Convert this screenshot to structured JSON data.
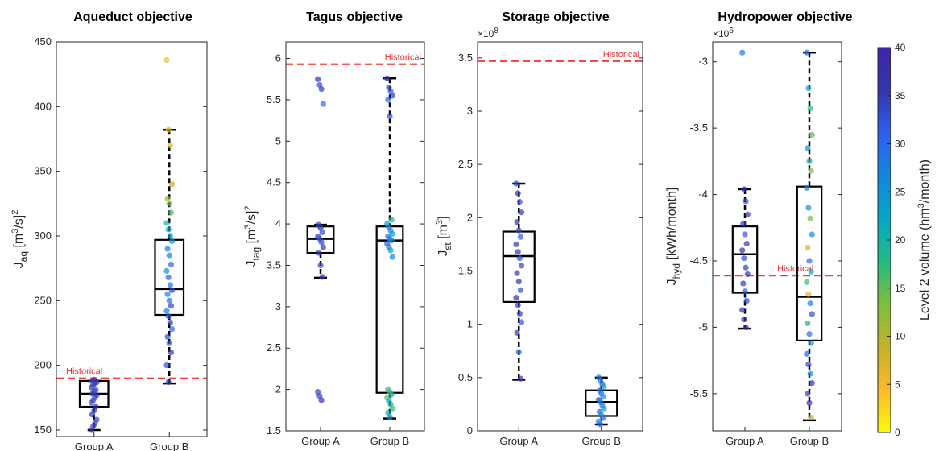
{
  "chart_data": [
    {
      "type": "box",
      "title": "Aqueduct objective",
      "ylabel": {
        "main": "J",
        "sub": "aq",
        "unit_pre": " [m",
        "unit_sup": "3",
        "unit_post": "/s]",
        "sup2": "2"
      },
      "exponent_label": "",
      "ylim": [
        145,
        450
      ],
      "yticks": [
        150,
        200,
        250,
        300,
        350,
        400,
        450
      ],
      "yticklabels": [
        "150",
        "200",
        "250",
        "300",
        "350",
        "400",
        "450"
      ],
      "categories": [
        "Group A",
        "Group B"
      ],
      "reference": {
        "label": "Historical",
        "value": 190
      },
      "boxes": [
        {
          "q1": 168,
          "median": 178,
          "q3": 188,
          "whisker_low": 150,
          "whisker_high": 188
        },
        {
          "q1": 239,
          "median": 259,
          "q3": 297,
          "whisker_low": 186,
          "whisker_high": 382
        }
      ],
      "points": [
        [
          {
            "y": 150,
            "c": 38
          },
          {
            "y": 153,
            "c": 33
          },
          {
            "y": 155,
            "c": 35
          },
          {
            "y": 158,
            "c": 34
          },
          {
            "y": 162,
            "c": 36
          },
          {
            "y": 165,
            "c": 34
          },
          {
            "y": 168,
            "c": 37
          },
          {
            "y": 171,
            "c": 33
          },
          {
            "y": 173,
            "c": 35
          },
          {
            "y": 175,
            "c": 32
          },
          {
            "y": 177,
            "c": 36
          },
          {
            "y": 178,
            "c": 34
          },
          {
            "y": 180,
            "c": 35
          },
          {
            "y": 181,
            "c": 33
          },
          {
            "y": 183,
            "c": 37
          },
          {
            "y": 185,
            "c": 34
          },
          {
            "y": 186,
            "c": 36
          },
          {
            "y": 187,
            "c": 35
          },
          {
            "y": 188,
            "c": 33
          },
          {
            "y": 189,
            "c": 38
          }
        ],
        [
          {
            "y": 436,
            "c": 5
          },
          {
            "y": 382,
            "c": 8
          },
          {
            "y": 370,
            "c": 6
          },
          {
            "y": 340,
            "c": 9
          },
          {
            "y": 329,
            "c": 12
          },
          {
            "y": 325,
            "c": 14
          },
          {
            "y": 318,
            "c": 16
          },
          {
            "y": 310,
            "c": 20
          },
          {
            "y": 305,
            "c": 22
          },
          {
            "y": 300,
            "c": 24
          },
          {
            "y": 296,
            "c": 26
          },
          {
            "y": 290,
            "c": 28
          },
          {
            "y": 285,
            "c": 27
          },
          {
            "y": 278,
            "c": 30
          },
          {
            "y": 273,
            "c": 25
          },
          {
            "y": 268,
            "c": 31
          },
          {
            "y": 262,
            "c": 29
          },
          {
            "y": 258,
            "c": 33
          },
          {
            "y": 255,
            "c": 27
          },
          {
            "y": 250,
            "c": 30
          },
          {
            "y": 246,
            "c": 34
          },
          {
            "y": 242,
            "c": 28
          },
          {
            "y": 238,
            "c": 32
          },
          {
            "y": 233,
            "c": 35
          },
          {
            "y": 228,
            "c": 30
          },
          {
            "y": 222,
            "c": 33
          },
          {
            "y": 217,
            "c": 31
          },
          {
            "y": 210,
            "c": 35
          },
          {
            "y": 200,
            "c": 33
          },
          {
            "y": 187,
            "c": 36
          }
        ]
      ]
    },
    {
      "type": "box",
      "title": "Tagus objective",
      "ylabel": {
        "main": "J",
        "sub": "tag",
        "unit_pre": " [m",
        "unit_sup": "3",
        "unit_post": "/s]",
        "sup2": "2"
      },
      "exponent_label": "",
      "ylim": [
        1.5,
        6.2
      ],
      "yticks": [
        1.5,
        2,
        2.5,
        3,
        3.5,
        4,
        4.5,
        5,
        5.5,
        6
      ],
      "yticklabels": [
        "1.5",
        "2",
        "2.5",
        "3",
        "3.5",
        "4",
        "4.5",
        "5",
        "5.5",
        "6"
      ],
      "categories": [
        "Group A",
        "Group B"
      ],
      "reference": {
        "label": "Historical",
        "value": 5.93
      },
      "boxes": [
        {
          "q1": 3.65,
          "median": 3.82,
          "q3": 3.97,
          "whisker_low": 3.35,
          "whisker_high": 3.99
        },
        {
          "q1": 1.96,
          "median": 3.8,
          "q3": 3.97,
          "whisker_low": 1.65,
          "whisker_high": 5.76
        }
      ],
      "points": [
        [
          {
            "y": 5.75,
            "c": 36
          },
          {
            "y": 5.68,
            "c": 33
          },
          {
            "y": 5.63,
            "c": 35
          },
          {
            "y": 5.45,
            "c": 30
          },
          {
            "y": 3.99,
            "c": 34
          },
          {
            "y": 3.95,
            "c": 36
          },
          {
            "y": 3.9,
            "c": 33
          },
          {
            "y": 3.85,
            "c": 35
          },
          {
            "y": 3.82,
            "c": 32
          },
          {
            "y": 3.78,
            "c": 34
          },
          {
            "y": 3.72,
            "c": 36
          },
          {
            "y": 3.65,
            "c": 35
          },
          {
            "y": 3.5,
            "c": 33
          },
          {
            "y": 3.36,
            "c": 37
          },
          {
            "y": 1.97,
            "c": 35
          },
          {
            "y": 1.92,
            "c": 34
          },
          {
            "y": 1.87,
            "c": 36
          }
        ],
        [
          {
            "y": 5.76,
            "c": 36
          },
          {
            "y": 5.65,
            "c": 34
          },
          {
            "y": 5.6,
            "c": 32
          },
          {
            "y": 5.55,
            "c": 35
          },
          {
            "y": 5.5,
            "c": 30
          },
          {
            "y": 5.3,
            "c": 33
          },
          {
            "y": 4.05,
            "c": 20
          },
          {
            "y": 4.0,
            "c": 24
          },
          {
            "y": 3.96,
            "c": 26
          },
          {
            "y": 3.92,
            "c": 28
          },
          {
            "y": 3.88,
            "c": 22
          },
          {
            "y": 3.85,
            "c": 30
          },
          {
            "y": 3.82,
            "c": 25
          },
          {
            "y": 3.8,
            "c": 27
          },
          {
            "y": 3.76,
            "c": 31
          },
          {
            "y": 3.72,
            "c": 29
          },
          {
            "y": 3.68,
            "c": 23
          },
          {
            "y": 3.6,
            "c": 26
          },
          {
            "y": 2.0,
            "c": 18
          },
          {
            "y": 1.97,
            "c": 15
          },
          {
            "y": 1.94,
            "c": 20
          },
          {
            "y": 1.9,
            "c": 16
          },
          {
            "y": 1.86,
            "c": 22
          },
          {
            "y": 1.82,
            "c": 19
          },
          {
            "y": 1.77,
            "c": 17
          },
          {
            "y": 1.72,
            "c": 21
          },
          {
            "y": 1.67,
            "c": 25
          }
        ]
      ]
    },
    {
      "type": "box",
      "title": "Storage objective",
      "ylabel": {
        "main": "J",
        "sub": "st",
        "unit_pre": " [m",
        "unit_sup": "3",
        "unit_post": "]",
        "sup2": ""
      },
      "exponent_label": "×10",
      "exponent_power": "8",
      "ylim": [
        0,
        3.65
      ],
      "yticks": [
        0,
        0.5,
        1,
        1.5,
        2,
        2.5,
        3,
        3.5
      ],
      "yticklabels": [
        "0",
        "0.5",
        "1",
        "1.5",
        "2",
        "2.5",
        "3",
        "3.5"
      ],
      "categories": [
        "Group A",
        "Group B"
      ],
      "reference": {
        "label": "Historical",
        "value": 3.47
      },
      "boxes": [
        {
          "q1": 1.21,
          "median": 1.64,
          "q3": 1.87,
          "whisker_low": 0.48,
          "whisker_high": 2.32
        },
        {
          "q1": 0.14,
          "median": 0.27,
          "q3": 0.38,
          "whisker_low": 0.06,
          "whisker_high": 0.5
        }
      ],
      "points": [
        [
          {
            "y": 2.32,
            "c": 34
          },
          {
            "y": 2.23,
            "c": 36
          },
          {
            "y": 2.15,
            "c": 33
          },
          {
            "y": 2.05,
            "c": 35
          },
          {
            "y": 1.96,
            "c": 37
          },
          {
            "y": 1.88,
            "c": 34
          },
          {
            "y": 1.82,
            "c": 32
          },
          {
            "y": 1.75,
            "c": 35
          },
          {
            "y": 1.68,
            "c": 36
          },
          {
            "y": 1.62,
            "c": 33
          },
          {
            "y": 1.55,
            "c": 34
          },
          {
            "y": 1.48,
            "c": 35
          },
          {
            "y": 1.4,
            "c": 37
          },
          {
            "y": 1.32,
            "c": 33
          },
          {
            "y": 1.25,
            "c": 36
          },
          {
            "y": 1.18,
            "c": 34
          },
          {
            "y": 1.1,
            "c": 35
          },
          {
            "y": 1.02,
            "c": 32
          },
          {
            "y": 0.92,
            "c": 36
          },
          {
            "y": 0.74,
            "c": 30
          },
          {
            "y": 0.49,
            "c": 35
          }
        ],
        [
          {
            "y": 0.5,
            "c": 30
          },
          {
            "y": 0.47,
            "c": 26
          },
          {
            "y": 0.44,
            "c": 33
          },
          {
            "y": 0.41,
            "c": 22
          },
          {
            "y": 0.38,
            "c": 28
          },
          {
            "y": 0.35,
            "c": 31
          },
          {
            "y": 0.32,
            "c": 25
          },
          {
            "y": 0.29,
            "c": 34
          },
          {
            "y": 0.27,
            "c": 27
          },
          {
            "y": 0.24,
            "c": 29
          },
          {
            "y": 0.21,
            "c": 24
          },
          {
            "y": 0.18,
            "c": 32
          },
          {
            "y": 0.15,
            "c": 26
          },
          {
            "y": 0.12,
            "c": 30
          },
          {
            "y": 0.09,
            "c": 28
          },
          {
            "y": 0.06,
            "c": 31
          }
        ]
      ]
    },
    {
      "type": "box",
      "title": "Hydropower objective",
      "ylabel": {
        "main": "J",
        "sub": "hyd",
        "unit_pre": " [kWh/month]",
        "unit_sup": "",
        "unit_post": "",
        "sup2": ""
      },
      "exponent_label": "×10",
      "exponent_power": "6",
      "ylim": [
        -5.78,
        -2.85
      ],
      "yticks": [
        -5.5,
        -5,
        -4.5,
        -4,
        -3.5,
        -3
      ],
      "yticklabels": [
        "-5.5",
        "-5",
        "-4.5",
        "-4",
        "-3.5",
        "-3"
      ],
      "categories": [
        "Group A",
        "Group B"
      ],
      "reference": {
        "label": "Historical",
        "value": -4.61
      },
      "boxes": [
        {
          "q1": -4.74,
          "median": -4.45,
          "q3": -4.24,
          "whisker_low": -5.01,
          "whisker_high": -3.96
        },
        {
          "q1": -5.1,
          "median": -4.77,
          "q3": -3.94,
          "whisker_low": -5.7,
          "whisker_high": -2.93
        }
      ],
      "points": [
        [
          {
            "y": -2.93,
            "c": 28
          },
          {
            "y": -3.96,
            "c": 35
          },
          {
            "y": -4.05,
            "c": 33
          },
          {
            "y": -4.15,
            "c": 36
          },
          {
            "y": -4.22,
            "c": 34
          },
          {
            "y": -4.3,
            "c": 32
          },
          {
            "y": -4.37,
            "c": 35
          },
          {
            "y": -4.42,
            "c": 37
          },
          {
            "y": -4.48,
            "c": 33
          },
          {
            "y": -4.55,
            "c": 34
          },
          {
            "y": -4.6,
            "c": 36
          },
          {
            "y": -4.67,
            "c": 35
          },
          {
            "y": -4.73,
            "c": 33
          },
          {
            "y": -4.8,
            "c": 34
          },
          {
            "y": -4.87,
            "c": 36
          },
          {
            "y": -4.94,
            "c": 35
          },
          {
            "y": -5.0,
            "c": 37
          }
        ],
        [
          {
            "y": -2.93,
            "c": 30
          },
          {
            "y": -3.2,
            "c": 22
          },
          {
            "y": -3.35,
            "c": 18
          },
          {
            "y": -3.55,
            "c": 15
          },
          {
            "y": -3.65,
            "c": 24
          },
          {
            "y": -3.75,
            "c": 20
          },
          {
            "y": -3.82,
            "c": 12
          },
          {
            "y": -3.95,
            "c": 28
          },
          {
            "y": -4.1,
            "c": 25
          },
          {
            "y": -4.18,
            "c": 14
          },
          {
            "y": -4.3,
            "c": 26
          },
          {
            "y": -4.4,
            "c": 8
          },
          {
            "y": -4.5,
            "c": 30
          },
          {
            "y": -4.58,
            "c": 22
          },
          {
            "y": -4.66,
            "c": 17
          },
          {
            "y": -4.75,
            "c": 6
          },
          {
            "y": -4.82,
            "c": 27
          },
          {
            "y": -4.9,
            "c": 33
          },
          {
            "y": -4.97,
            "c": 19
          },
          {
            "y": -5.05,
            "c": 29
          },
          {
            "y": -5.12,
            "c": 24
          },
          {
            "y": -5.2,
            "c": 31
          },
          {
            "y": -5.28,
            "c": 34
          },
          {
            "y": -5.35,
            "c": 26
          },
          {
            "y": -5.42,
            "c": 36
          },
          {
            "y": -5.5,
            "c": 35
          },
          {
            "y": -5.57,
            "c": 37
          },
          {
            "y": -5.68,
            "c": 9
          }
        ]
      ]
    }
  ],
  "colorbar": {
    "label": "Level 2 volume (hm",
    "label_sup": "3",
    "label_post": "/month)",
    "min": 0,
    "max": 40,
    "ticks": [
      0,
      5,
      10,
      15,
      20,
      25,
      30,
      35,
      40
    ],
    "ticklabels": [
      "0",
      "5",
      "10",
      "15",
      "20",
      "25",
      "30",
      "35",
      "40"
    ],
    "stops": [
      "#f9fb0e",
      "#fbba2b",
      "#c3b12b",
      "#7cbf3c",
      "#24ba83",
      "#06a7c6",
      "#1486dc",
      "#2f5ef0",
      "#3436a8",
      "#3e26a8"
    ]
  }
}
